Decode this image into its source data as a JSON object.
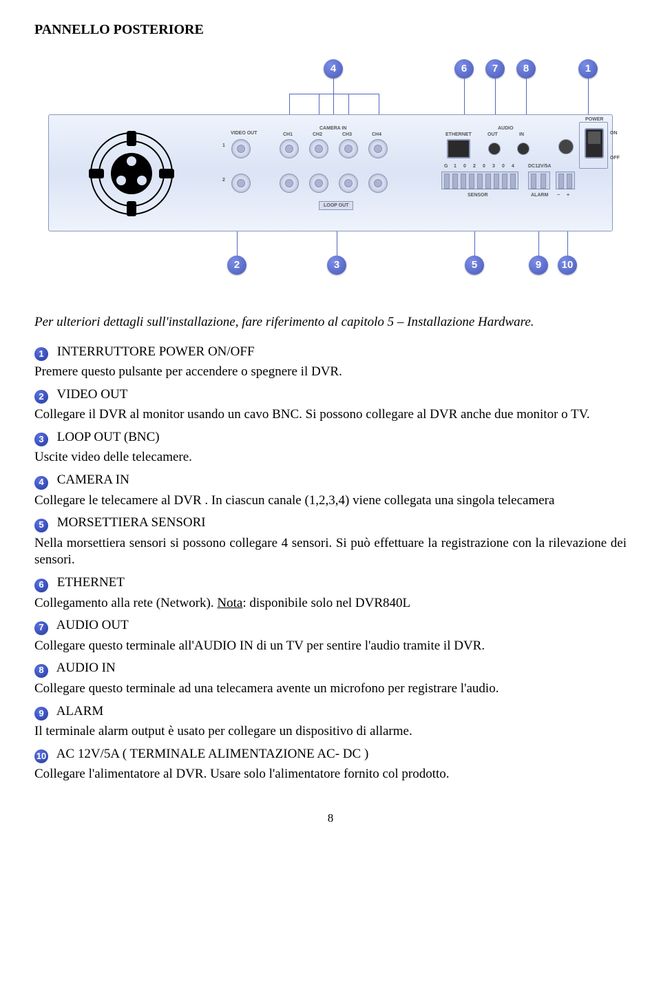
{
  "section_title": "PANNELLO POSTERIORE",
  "intro": "Per ulteriori dettagli sull'installazione, fare riferimento al capitolo 5 – Installazione Hardware.",
  "diagram": {
    "labels": {
      "video_out": "VIDEO OUT",
      "camera_in": "CAMERA IN",
      "ch1": "CH1",
      "ch2": "CH2",
      "ch3": "CH3",
      "ch4": "CH4",
      "loop_out": "LOOP OUT",
      "ethernet": "ETHERNET",
      "audio": "AUDIO",
      "out": "OUT",
      "in": "IN",
      "power": "POWER",
      "on": "ON",
      "off": "OFF",
      "dc": "DC12V/5A",
      "sensor": "SENSOR",
      "alarm": "ALARM",
      "g": "G",
      "n0": "0",
      "n1": "1",
      "n2": "2",
      "n3": "3",
      "n4": "4",
      "num1": "1",
      "num2": "2",
      "minus": "−",
      "plus": "+"
    }
  },
  "items": [
    {
      "n": "1",
      "title": " INTERRUTTORE  POWER ON/OFF",
      "desc": "Premere questo pulsante per accendere o spegnere il DVR."
    },
    {
      "n": "2",
      "title": " VIDEO OUT",
      "desc": "Collegare il DVR al monitor usando un cavo BNC. Si possono collegare al DVR anche due monitor o TV."
    },
    {
      "n": "3",
      "title": " LOOP OUT (BNC)",
      "desc": "Uscite video delle telecamere."
    },
    {
      "n": "4",
      "title": " CAMERA IN",
      "desc": "Collegare le telecamere al DVR . In ciascun canale (1,2,3,4) viene collegata una singola telecamera"
    },
    {
      "n": "5",
      "title": " MORSETTIERA  SENSORI",
      "desc": "Nella morsettiera sensori si possono collegare 4 sensori. Si può effettuare la registrazione con la rilevazione dei sensori."
    },
    {
      "n": "6",
      "title": " ETHERNET",
      "desc_pre": "Collegamento alla rete (Network). ",
      "desc_u": "Nota",
      "desc_post": ": disponibile solo nel DVR840L"
    },
    {
      "n": "7",
      "title": " AUDIO OUT",
      "desc": "Collegare questo terminale all'AUDIO IN di un TV per sentire l'audio tramite il DVR."
    },
    {
      "n": "8",
      "title": " AUDIO IN",
      "desc": "Collegare questo terminale ad una telecamera avente un microfono per registrare l'audio."
    },
    {
      "n": "9",
      "title": " ALARM",
      "desc": "Il terminale alarm output è usato per collegare un dispositivo di allarme."
    },
    {
      "n": "10",
      "title": " AC 12V/5A  ( TERMINALE ALIMENTAZIONE AC- DC )",
      "desc": "Collegare l'alimentatore al DVR. Usare solo l'alimentatore fornito col prodotto."
    }
  ],
  "page_number": "8"
}
